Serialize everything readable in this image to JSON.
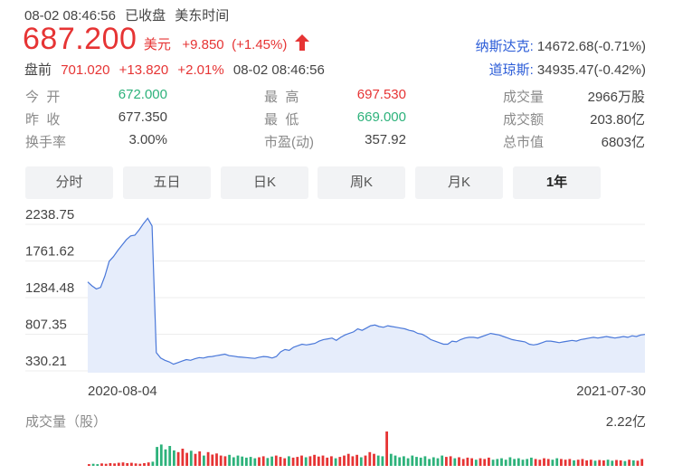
{
  "header": {
    "datetime": "08-02 08:46:56",
    "status": "已收盘",
    "timezone": "美东时间",
    "price": "687.200",
    "currency": "美元",
    "change": "+9.850",
    "change_pct": "(+1.45%)",
    "premarket_label": "盘前",
    "premarket_price": "701.020",
    "premarket_change": "+13.820",
    "premarket_pct": "+2.01%",
    "premarket_time": "08-02 08:46:56",
    "arrow_icon": "up-arrow-icon",
    "up_color": "#e63434",
    "down_color": "#2db27b"
  },
  "indices": [
    {
      "name": "纳斯达克:",
      "value": "14672.68(-0.71%)"
    },
    {
      "name": "道琼斯:",
      "value": "34935.47(-0.42%)"
    }
  ],
  "stats": {
    "open_label": "今  开",
    "open": "672.000",
    "prev_close_label": "昨  收",
    "prev_close": "677.350",
    "turnover_label": "换手率",
    "turnover": "3.00%",
    "high_label": "最  高",
    "high": "697.530",
    "low_label": "最  低",
    "low": "669.000",
    "pe_label": "市盈(动)",
    "pe": "357.92",
    "volume_label": "成交量",
    "volume": "2966万股",
    "amount_label": "成交额",
    "amount": "203.80亿",
    "mcap_label": "总市值",
    "mcap": "6803亿"
  },
  "tabs": [
    {
      "label": "分时",
      "active": false
    },
    {
      "label": "五日",
      "active": false
    },
    {
      "label": "日K",
      "active": false
    },
    {
      "label": "周K",
      "active": false
    },
    {
      "label": "月K",
      "active": false
    },
    {
      "label": "1年",
      "active": true
    }
  ],
  "chart_data": {
    "type": "area",
    "y_ticks": [
      "2238.75",
      "1761.62",
      "1284.48",
      "807.35",
      "330.21"
    ],
    "ylim": [
      330.21,
      2238.75
    ],
    "x_start_label": "2020-08-04",
    "x_end_label": "2021-07-30",
    "line_color": "#4a78d9",
    "fill_color": "#e6edfb",
    "price_series": [
      1370,
      1320,
      1280,
      1300,
      1450,
      1640,
      1700,
      1780,
      1850,
      1920,
      1970,
      1980,
      2050,
      2130,
      2200,
      2100,
      450,
      380,
      350,
      330,
      300,
      320,
      340,
      360,
      350,
      370,
      385,
      380,
      395,
      400,
      410,
      420,
      430,
      410,
      405,
      395,
      390,
      385,
      380,
      375,
      390,
      400,
      395,
      380,
      400,
      460,
      490,
      480,
      520,
      540,
      560,
      550,
      560,
      570,
      600,
      620,
      630,
      640,
      610,
      650,
      680,
      700,
      720,
      760,
      740,
      770,
      800,
      810,
      790,
      780,
      800,
      790,
      780,
      770,
      760,
      740,
      730,
      700,
      690,
      660,
      620,
      600,
      580,
      560,
      560,
      600,
      590,
      620,
      640,
      650,
      650,
      640,
      660,
      680,
      700,
      690,
      680,
      660,
      640,
      620,
      610,
      600,
      590,
      560,
      550,
      560,
      580,
      600,
      600,
      590,
      580,
      590,
      600,
      610,
      600,
      620,
      630,
      640,
      650,
      640,
      650,
      660,
      650,
      640,
      650,
      660,
      650,
      670,
      660,
      680,
      687
    ],
    "volume_label": "成交量（股）",
    "volume_max_label": "2.22亿",
    "volume_bars": [
      0.05,
      0.06,
      0.05,
      0.07,
      0.06,
      0.08,
      0.07,
      0.09,
      0.1,
      0.08,
      0.09,
      0.07,
      0.06,
      0.08,
      0.1,
      0.12,
      0.55,
      0.62,
      0.48,
      0.58,
      0.45,
      0.4,
      0.5,
      0.38,
      0.44,
      0.35,
      0.42,
      0.3,
      0.4,
      0.33,
      0.36,
      0.3,
      0.28,
      0.32,
      0.25,
      0.3,
      0.27,
      0.24,
      0.26,
      0.22,
      0.25,
      0.28,
      0.23,
      0.27,
      0.3,
      0.26,
      0.22,
      0.28,
      0.24,
      0.26,
      0.3,
      0.25,
      0.28,
      0.32,
      0.27,
      0.3,
      0.24,
      0.28,
      0.22,
      0.26,
      0.3,
      0.35,
      0.28,
      0.32,
      0.25,
      0.3,
      0.4,
      0.35,
      0.3,
      0.28,
      1.0,
      0.35,
      0.3,
      0.25,
      0.28,
      0.22,
      0.3,
      0.26,
      0.24,
      0.28,
      0.2,
      0.25,
      0.22,
      0.3,
      0.26,
      0.28,
      0.22,
      0.25,
      0.2,
      0.24,
      0.22,
      0.18,
      0.22,
      0.2,
      0.24,
      0.18,
      0.2,
      0.22,
      0.18,
      0.25,
      0.2,
      0.22,
      0.18,
      0.2,
      0.24,
      0.2,
      0.18,
      0.22,
      0.2,
      0.18,
      0.22,
      0.2,
      0.18,
      0.2,
      0.16,
      0.18,
      0.2,
      0.16,
      0.18,
      0.15,
      0.17,
      0.16,
      0.18,
      0.15,
      0.17,
      0.16,
      0.14,
      0.18,
      0.16,
      0.15,
      0.2
    ],
    "volume_colors_up": "#e63434",
    "volume_colors_down": "#2db27b"
  }
}
